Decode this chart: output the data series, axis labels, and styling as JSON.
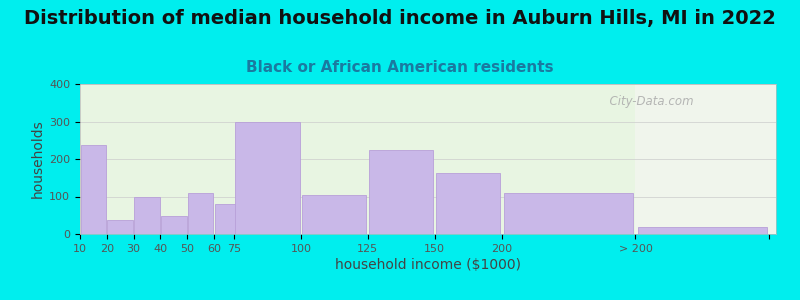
{
  "title": "Distribution of median household income in Auburn Hills, MI in 2022",
  "subtitle": "Black or African American residents",
  "xlabel": "household income ($1000)",
  "ylabel": "households",
  "background_outer": "#00EEEE",
  "bar_color": "#c9b8e8",
  "bar_edge_color": "#b8a0d8",
  "ylim": [
    0,
    400
  ],
  "yticks": [
    0,
    100,
    200,
    300,
    400
  ],
  "categories": [
    "10",
    "20",
    "30",
    "40",
    "50",
    "60",
    "75",
    "100",
    "125",
    "150",
    "200",
    "> 200"
  ],
  "values": [
    237,
    38,
    100,
    47,
    110,
    80,
    298,
    104,
    224,
    163,
    109,
    18
  ],
  "bar_lefts": [
    5,
    15,
    25,
    35,
    45,
    55,
    62.5,
    87.5,
    112.5,
    137.5,
    162.5,
    212.5
  ],
  "bar_widths": [
    10,
    10,
    10,
    10,
    10,
    15,
    25,
    25,
    25,
    25,
    50,
    50
  ],
  "watermark": "  City-Data.com",
  "title_fontsize": 14,
  "subtitle_fontsize": 11,
  "axis_label_fontsize": 10,
  "tick_fontsize": 8,
  "xlim": [
    5,
    265
  ],
  "separator_x": 212.5,
  "bg_left_color": "#e8f5e2",
  "bg_right_color": "#f0f5ee"
}
